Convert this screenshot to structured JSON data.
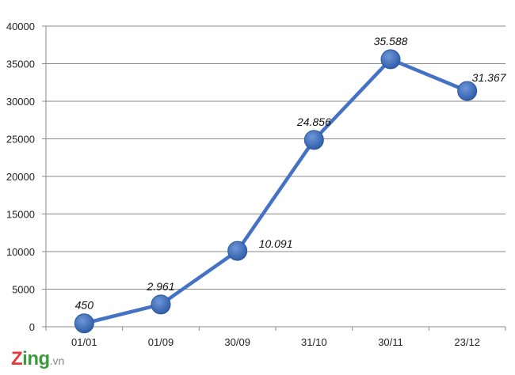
{
  "chart_data": {
    "type": "line",
    "categories": [
      "01/01",
      "01/09",
      "30/09",
      "31/10",
      "30/11",
      "23/12"
    ],
    "values": [
      450,
      2961,
      10091,
      24856,
      35588,
      31367
    ],
    "data_labels": [
      "450",
      "2.961",
      "10.091",
      "24.856",
      "35.588",
      "31.367"
    ],
    "ylim": [
      0,
      40000
    ],
    "yticks": [
      0,
      5000,
      10000,
      15000,
      20000,
      25000,
      30000,
      35000,
      40000
    ],
    "ytick_labels": [
      "0",
      "5000",
      "10000",
      "15000",
      "20000",
      "25000",
      "30000",
      "35000",
      "40000"
    ],
    "grid": true,
    "line_color": "#4472c4",
    "marker_color": "#3f6fc0",
    "title": "",
    "xlabel": "",
    "ylabel": ""
  },
  "watermark": {
    "brand_z": "Z",
    "brand_rest": "ing",
    "suffix": ".vn"
  }
}
